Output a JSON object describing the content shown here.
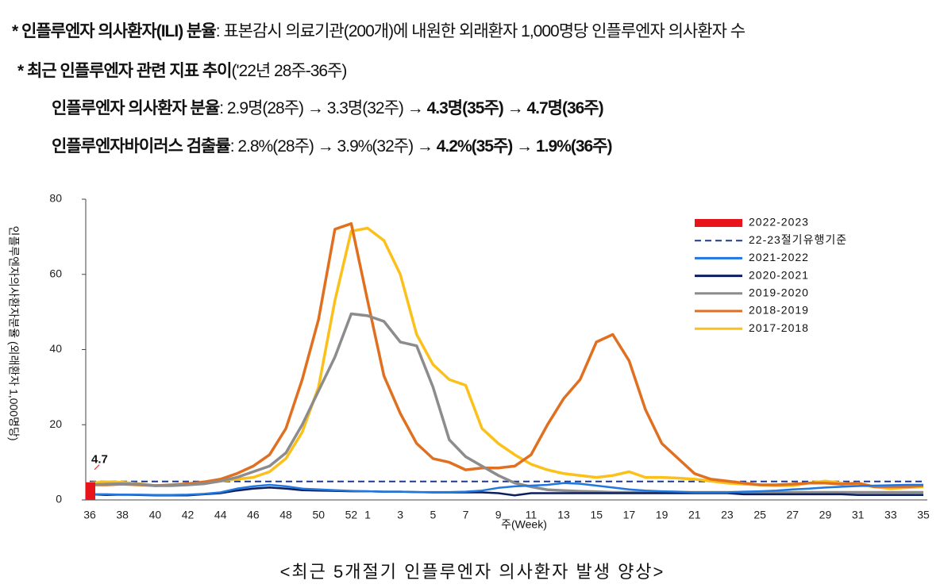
{
  "notes": [
    [
      {
        "text": "* 인플루엔자 의사환자(ILI) 분율",
        "bold": true
      },
      {
        "text": ": 표본감시 의료기관(200개)에 내원한 외래환자 1,000명당 인플루엔자 의사환자 수",
        "bold": false
      }
    ],
    [
      {
        "text": "* 최근 인플루엔자 관련 지표 추이",
        "bold": true
      },
      {
        "text": "('22년 28주-36주)",
        "bold": false
      }
    ],
    [
      {
        "text": "인플루엔자 의사환자 분율",
        "bold": true
      },
      {
        "text": ": 2.9명(28주) → 3.3명(32주) → ",
        "bold": false
      },
      {
        "text": "4.3명(35주)",
        "bold": true
      },
      {
        "text": " → ",
        "bold": false
      },
      {
        "text": "4.7명(36주)",
        "bold": true
      }
    ],
    [
      {
        "text": "인플루엔자바이러스 검출률",
        "bold": true
      },
      {
        "text": ": 2.8%(28주) → 3.9%(32주) → ",
        "bold": false
      },
      {
        "text": "4.2%(35주)",
        "bold": true
      },
      {
        "text": " → ",
        "bold": false
      },
      {
        "text": "1.9%(36주)",
        "bold": true
      }
    ]
  ],
  "chart_data": {
    "type": "line",
    "caption": "<최근 5개절기 인플루엔자 의사환자 발생 양상>",
    "x_label": "주(Week)",
    "y_label": "인플루엔자의사환자분율 (외래환자 1,000명당)",
    "categories": [
      "36",
      null,
      "38",
      null,
      "40",
      null,
      "42",
      null,
      "44",
      null,
      "46",
      null,
      "48",
      null,
      "50",
      null,
      "52",
      "1",
      null,
      "3",
      null,
      "5",
      null,
      "7",
      null,
      "9",
      null,
      "11",
      null,
      "13",
      null,
      "15",
      null,
      "17",
      null,
      "19",
      null,
      "21",
      null,
      "23",
      null,
      "25",
      null,
      "27",
      null,
      "29",
      null,
      "31",
      null,
      "33",
      null,
      "35"
    ],
    "ylim": [
      0,
      80
    ],
    "yticks": [
      0,
      20,
      40,
      60,
      80
    ],
    "threshold": {
      "name": "22-23절기유행기준",
      "value": 4.9,
      "color": "#1f3a8a"
    },
    "series": [
      {
        "name": "2022-2023",
        "color": "#e8141c",
        "mark": "bar",
        "values": [
          4.7,
          null,
          null,
          null,
          null,
          null,
          null,
          null,
          null,
          null,
          null,
          null,
          null,
          null,
          null,
          null,
          null,
          null,
          null,
          null,
          null,
          null,
          null,
          null,
          null,
          null,
          null,
          null,
          null,
          null,
          null,
          null,
          null,
          null,
          null,
          null,
          null,
          null,
          null,
          null,
          null,
          null,
          null,
          null,
          null,
          null,
          null,
          null,
          null,
          null,
          null,
          null
        ]
      },
      {
        "name": "2021-2022",
        "color": "#1f77e0",
        "values": [
          1.5,
          1.5,
          1.4,
          1.4,
          1.3,
          1.3,
          1.4,
          1.6,
          2,
          3,
          3.6,
          4,
          3.6,
          3,
          2.8,
          2.6,
          2.4,
          2.3,
          2.2,
          2.2,
          2.1,
          2.1,
          2.1,
          2.2,
          2.5,
          3.2,
          3.6,
          3.8,
          4,
          4.5,
          4.3,
          3.8,
          3.3,
          2.8,
          2.5,
          2.3,
          2.2,
          2,
          2,
          2,
          2.2,
          2.3,
          2.5,
          2.8,
          3,
          3.3,
          3.5,
          3.7,
          3.8,
          3.9,
          4,
          4
        ]
      },
      {
        "name": "2020-2021",
        "color": "#0b1f5e",
        "values": [
          1.5,
          1.3,
          1.4,
          1.3,
          1.2,
          1.2,
          1.2,
          1.5,
          1.8,
          2.5,
          3,
          3.3,
          3,
          2.6,
          2.5,
          2.4,
          2.3,
          2.3,
          2.2,
          2.2,
          2.1,
          2,
          2,
          2,
          2,
          1.8,
          1.2,
          1.8,
          1.8,
          1.8,
          1.8,
          1.8,
          1.8,
          1.8,
          1.8,
          1.8,
          1.8,
          1.8,
          1.8,
          1.8,
          1.5,
          1.5,
          1.5,
          1.5,
          1.5,
          1.5,
          1.5,
          1.3,
          1.3,
          1.3,
          1.3,
          1.3
        ]
      },
      {
        "name": "2019-2020",
        "color": "#8c8c8c",
        "values": [
          4,
          4.2,
          4.3,
          4.2,
          3.8,
          3.8,
          4,
          4.3,
          5,
          6,
          7.5,
          9,
          12.5,
          20,
          29,
          38,
          49.5,
          49,
          47.5,
          42,
          41,
          30,
          16,
          11.5,
          9,
          6.5,
          4.5,
          3.5,
          2.7,
          2.5,
          2.3,
          2.2,
          2,
          2,
          2,
          2,
          2,
          2,
          2,
          2,
          2,
          2,
          2,
          2,
          2,
          2,
          2,
          2,
          2,
          2,
          2,
          2
        ]
      },
      {
        "name": "2018-2019",
        "color": "#e07020",
        "values": [
          4,
          4,
          4.2,
          4,
          3.8,
          4,
          4.3,
          4.8,
          5.5,
          7,
          9,
          12,
          19,
          32,
          48,
          72,
          73.5,
          53,
          33,
          23,
          15,
          11,
          10,
          8,
          8.5,
          8.5,
          9,
          12,
          20,
          27,
          32,
          42,
          44,
          37,
          24,
          15,
          11,
          7,
          5.5,
          5,
          4.5,
          4,
          4,
          4.2,
          4.5,
          4.5,
          4.2,
          4.5,
          3.5,
          3.5,
          3.5,
          3.8
        ]
      },
      {
        "name": "2017-2018",
        "color": "#fbc01a",
        "values": [
          4.5,
          4.8,
          4.7,
          4.3,
          3.8,
          3.9,
          4.2,
          4.5,
          5,
          5.5,
          6,
          7.5,
          11,
          18,
          30,
          53,
          71.5,
          72.3,
          69,
          60,
          44,
          36,
          32,
          30.5,
          19,
          15,
          12,
          9.5,
          8,
          7,
          6.5,
          6,
          6.5,
          7.5,
          6,
          6,
          5.8,
          5.5,
          5,
          4.5,
          4.2,
          4,
          3.8,
          3.8,
          4.5,
          5,
          4.5,
          4,
          3.5,
          3,
          3.3,
          3.5
        ]
      }
    ],
    "legend_order": [
      "chart_data.series.0",
      "chart_data.threshold",
      "chart_data.series.1",
      "chart_data.series.2",
      "chart_data.series.3",
      "chart_data.series.4",
      "chart_data.series.5"
    ]
  }
}
